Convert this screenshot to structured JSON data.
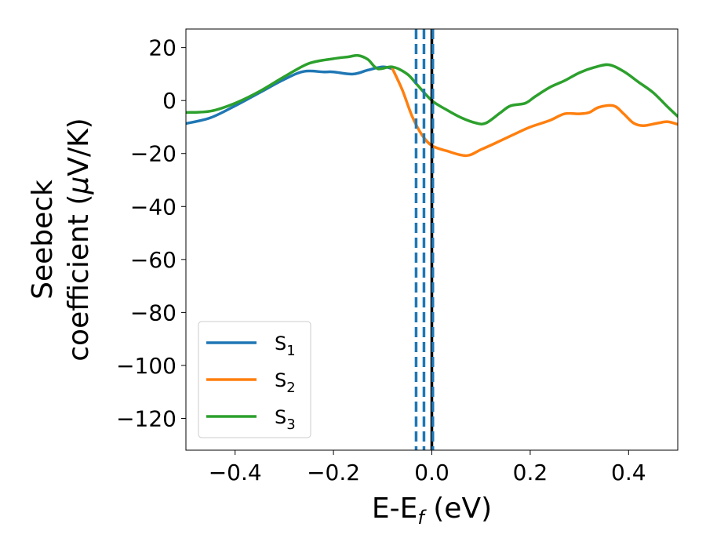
{
  "chart_data": {
    "type": "line",
    "title": "",
    "xlabel": "E-E",
    "xlabel_sub": "f",
    "xlabel_unit": " (eV)",
    "ylabel_line1": "Seebeck",
    "ylabel_line2_pre": "coefficient  (",
    "ylabel_mu": "μ",
    "ylabel_line2_post": "V/K)",
    "xlim": [
      -0.5,
      0.5
    ],
    "ylim": [
      -132,
      27
    ],
    "x_ticks": [
      -0.4,
      -0.2,
      0.0,
      0.2,
      0.4
    ],
    "x_tick_labels": [
      "−0.4",
      "−0.2",
      "0.0",
      "0.2",
      "0.4"
    ],
    "y_ticks": [
      20,
      0,
      -20,
      -40,
      -60,
      -80,
      -100,
      -120
    ],
    "y_tick_labels": [
      "20",
      "0",
      "−20",
      "−40",
      "−60",
      "−80",
      "−100",
      "−120"
    ],
    "legend_position": "lower-left",
    "series": [
      {
        "name": "S",
        "sub": "1",
        "color": "#1f77b4",
        "points": [
          [
            -0.5,
            -8.7
          ],
          [
            -0.45,
            -6.5
          ],
          [
            -0.4,
            -2
          ],
          [
            -0.35,
            3
          ],
          [
            -0.3,
            8
          ],
          [
            -0.26,
            11
          ],
          [
            -0.22,
            10.8
          ],
          [
            -0.2,
            10.8
          ],
          [
            -0.16,
            10
          ],
          [
            -0.13,
            11.5
          ],
          [
            -0.1,
            12.7
          ],
          [
            -0.08,
            12
          ]
        ]
      },
      {
        "name": "S",
        "sub": "2",
        "color": "#ff7f0e",
        "points": [
          [
            -0.08,
            12
          ],
          [
            -0.06,
            4
          ],
          [
            -0.04,
            -6
          ],
          [
            -0.02,
            -13
          ],
          [
            0.0,
            -17
          ],
          [
            0.03,
            -19
          ],
          [
            0.07,
            -20.8
          ],
          [
            0.1,
            -18.5
          ],
          [
            0.13,
            -16
          ],
          [
            0.17,
            -12.5
          ],
          [
            0.2,
            -10
          ],
          [
            0.24,
            -7.5
          ],
          [
            0.27,
            -5
          ],
          [
            0.3,
            -5
          ],
          [
            0.32,
            -4.5
          ],
          [
            0.34,
            -2.5
          ],
          [
            0.37,
            -2
          ],
          [
            0.39,
            -5
          ],
          [
            0.41,
            -8.5
          ],
          [
            0.43,
            -9.5
          ],
          [
            0.46,
            -8.5
          ],
          [
            0.48,
            -8
          ],
          [
            0.5,
            -9
          ]
        ]
      },
      {
        "name": "S",
        "sub": "3",
        "color": "#2ca02c",
        "points": [
          [
            -0.5,
            -4.5
          ],
          [
            -0.45,
            -4
          ],
          [
            -0.4,
            -1
          ],
          [
            -0.35,
            3.5
          ],
          [
            -0.3,
            9
          ],
          [
            -0.25,
            14
          ],
          [
            -0.2,
            15.8
          ],
          [
            -0.17,
            16.5
          ],
          [
            -0.15,
            17
          ],
          [
            -0.13,
            15.5
          ],
          [
            -0.11,
            12
          ],
          [
            -0.08,
            12.7
          ],
          [
            -0.05,
            10
          ],
          [
            -0.03,
            6
          ],
          [
            0.0,
            0
          ],
          [
            0.03,
            -3.5
          ],
          [
            0.06,
            -6.5
          ],
          [
            0.09,
            -8.5
          ],
          [
            0.11,
            -8.5
          ],
          [
            0.14,
            -4.5
          ],
          [
            0.16,
            -2
          ],
          [
            0.19,
            -1
          ],
          [
            0.21,
            1.5
          ],
          [
            0.24,
            5
          ],
          [
            0.27,
            7.5
          ],
          [
            0.3,
            10.5
          ],
          [
            0.33,
            12.5
          ],
          [
            0.36,
            13.5
          ],
          [
            0.39,
            11
          ],
          [
            0.42,
            7
          ],
          [
            0.45,
            3
          ],
          [
            0.48,
            -2.5
          ],
          [
            0.5,
            -6
          ]
        ]
      }
    ],
    "vertical_lines": [
      {
        "x": -0.032,
        "style": "dashed",
        "color": "#1f77b4"
      },
      {
        "x": -0.016,
        "style": "dashed",
        "color": "#1f77b4"
      },
      {
        "x": 0.0,
        "style": "solid",
        "color": "#000000"
      },
      {
        "x": 0.002,
        "style": "dashed",
        "color": "#1f77b4"
      }
    ]
  }
}
